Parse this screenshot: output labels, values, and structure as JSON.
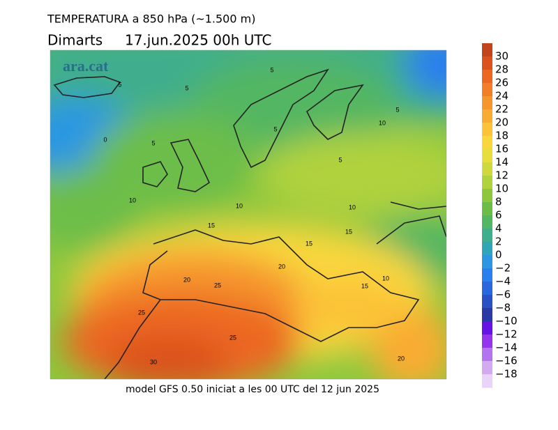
{
  "header": {
    "title": "TEMPERATURA a 850 hPa (~1.500 m)",
    "subtitle": "Dimarts     17.jun.2025 00h UTC"
  },
  "watermark": "ara.cat",
  "footer": "model GFS 0.50 iniciat a les 00 UTC del 12 jun 2025",
  "legend": {
    "labels": [
      "30",
      "28",
      "26",
      "24",
      "22",
      "20",
      "18",
      "16",
      "14",
      "12",
      "10",
      "8",
      "6",
      "4",
      "2",
      "0",
      "−2",
      "−4",
      "−6",
      "−8",
      "−10",
      "−12",
      "−14",
      "−16",
      "−18"
    ],
    "colors": [
      "#c1441c",
      "#dc521f",
      "#ec6822",
      "#f27e28",
      "#f6952d",
      "#f9ac33",
      "#fcc339",
      "#f9d73c",
      "#e7de3e",
      "#cfd93d",
      "#b0d23c",
      "#8dc73d",
      "#6cbd48",
      "#52b662",
      "#3fae8c",
      "#2fa6b8",
      "#2b97e2",
      "#2a7fee",
      "#2a67df",
      "#2a50c6",
      "#2a39a6",
      "#6412e6",
      "#9434ef",
      "#b473ef",
      "#d3aaf1",
      "#ead3f8"
    ]
  },
  "contour_labels": [
    "5",
    "5",
    "5",
    "5",
    "5",
    "10",
    "0",
    "5",
    "5",
    "10",
    "10",
    "10",
    "15",
    "15",
    "15",
    "20",
    "20",
    "25",
    "10",
    "15",
    "25",
    "25",
    "30",
    "20"
  ]
}
